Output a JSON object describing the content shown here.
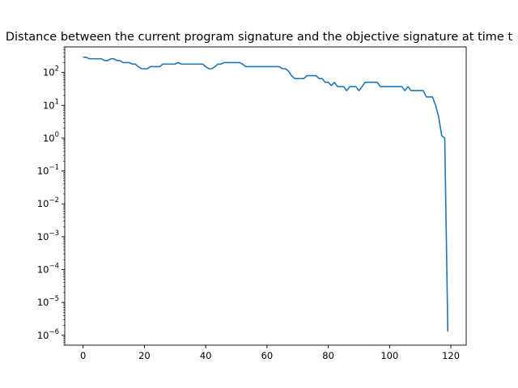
{
  "chart_data": {
    "type": "line",
    "title": "Distance between the current program signature and the objective signature at time t",
    "xlabel": "",
    "ylabel": "",
    "yscale": "log",
    "xlim": [
      -6,
      125
    ],
    "ylim": [
      5e-07,
      600
    ],
    "grid": false,
    "xticks": [
      0,
      20,
      40,
      60,
      80,
      100,
      120
    ],
    "xtick_labels": [
      "0",
      "20",
      "40",
      "60",
      "80",
      "100",
      "120"
    ],
    "yticks": [
      {
        "value": 100.0,
        "base": "10",
        "exp": "2"
      },
      {
        "value": 10.0,
        "base": "10",
        "exp": "1"
      },
      {
        "value": 1.0,
        "base": "10",
        "exp": "0"
      },
      {
        "value": 0.1,
        "base": "10",
        "exp": "−1"
      },
      {
        "value": 0.01,
        "base": "10",
        "exp": "−2"
      },
      {
        "value": 0.001,
        "base": "10",
        "exp": "−3"
      },
      {
        "value": 0.0001,
        "base": "10",
        "exp": "−4"
      },
      {
        "value": 1e-05,
        "base": "10",
        "exp": "−5"
      },
      {
        "value": 1e-06,
        "base": "10",
        "exp": "−6"
      }
    ],
    "series": [
      {
        "color": "#1f77b4",
        "x": [
          0,
          1,
          2,
          3,
          4,
          5,
          6,
          7,
          8,
          9,
          10,
          11,
          12,
          13,
          14,
          15,
          16,
          17,
          18,
          19,
          20,
          21,
          22,
          23,
          24,
          25,
          26,
          27,
          28,
          29,
          30,
          31,
          32,
          33,
          34,
          35,
          36,
          37,
          38,
          39,
          40,
          41,
          42,
          43,
          44,
          45,
          46,
          47,
          48,
          49,
          50,
          51,
          52,
          53,
          54,
          55,
          56,
          57,
          58,
          59,
          60,
          61,
          62,
          63,
          64,
          65,
          66,
          67,
          68,
          69,
          70,
          71,
          72,
          73,
          74,
          75,
          76,
          77,
          78,
          79,
          80,
          81,
          82,
          83,
          84,
          85,
          86,
          87,
          88,
          89,
          90,
          91,
          92,
          93,
          94,
          95,
          96,
          97,
          98,
          99,
          100,
          101,
          102,
          103,
          104,
          105,
          106,
          107,
          108,
          109,
          110,
          111,
          112,
          113,
          114,
          115,
          116,
          117,
          118,
          119
        ],
        "y": [
          290,
          290,
          260,
          260,
          260,
          260,
          260,
          230,
          230,
          260,
          260,
          230,
          230,
          200,
          200,
          200,
          180,
          180,
          150,
          130,
          130,
          130,
          150,
          150,
          150,
          150,
          180,
          180,
          180,
          180,
          180,
          200,
          180,
          180,
          180,
          180,
          180,
          180,
          180,
          180,
          150,
          130,
          130,
          150,
          180,
          180,
          200,
          200,
          200,
          200,
          200,
          200,
          180,
          150,
          150,
          150,
          150,
          150,
          150,
          150,
          150,
          150,
          150,
          150,
          150,
          130,
          130,
          110,
          80,
          65,
          65,
          65,
          65,
          80,
          80,
          80,
          80,
          65,
          65,
          50,
          50,
          40,
          50,
          37,
          37,
          37,
          28,
          37,
          37,
          37,
          28,
          37,
          50,
          50,
          50,
          50,
          50,
          37,
          37,
          37,
          37,
          37,
          37,
          37,
          37,
          28,
          37,
          28,
          28,
          28,
          28,
          28,
          18,
          18,
          18,
          10,
          4.5,
          1.2,
          1.0,
          1.3e-06
        ]
      }
    ]
  }
}
